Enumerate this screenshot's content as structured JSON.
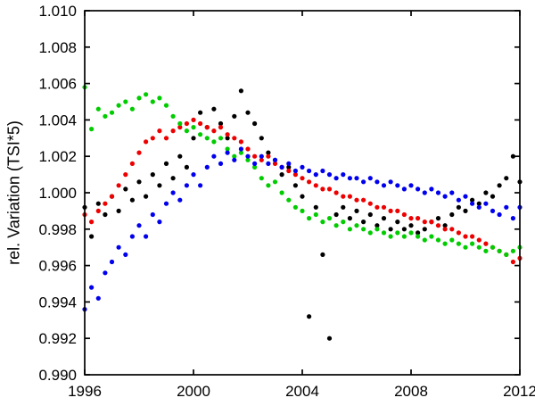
{
  "chart_data": {
    "type": "scatter",
    "title": "",
    "xlabel": "",
    "ylabel": "rel. Variation (TSI*5)",
    "xlim": [
      1996,
      2012
    ],
    "ylim": [
      0.99,
      1.01
    ],
    "grid": false,
    "legend": "none",
    "background": "#ffffff",
    "axis_color": "#000000",
    "marker": {
      "shape": "dot",
      "radius_px": 2.6
    },
    "xticks": [
      1996,
      2000,
      2004,
      2008,
      2012
    ],
    "xtick_labels": [
      "1996",
      "2000",
      "2004",
      "2008",
      "2012"
    ],
    "yticks": [
      0.99,
      0.992,
      0.994,
      0.996,
      0.998,
      1.0,
      1.002,
      1.004,
      1.006,
      1.008,
      1.01
    ],
    "ytick_labels": [
      "0.990",
      "0.992",
      "0.994",
      "0.996",
      "0.998",
      "1.000",
      "1.002",
      "1.004",
      "1.006",
      "1.008",
      "1.010"
    ],
    "x": [
      1996.0,
      1996.25,
      1996.5,
      1996.75,
      1997.0,
      1997.25,
      1997.5,
      1997.75,
      1998.0,
      1998.25,
      1998.5,
      1998.75,
      1999.0,
      1999.25,
      1999.5,
      1999.75,
      2000.0,
      2000.25,
      2000.5,
      2000.75,
      2001.0,
      2001.25,
      2001.5,
      2001.75,
      2002.0,
      2002.25,
      2002.5,
      2002.75,
      2003.0,
      2003.25,
      2003.5,
      2003.75,
      2004.0,
      2004.25,
      2004.5,
      2004.75,
      2005.0,
      2005.25,
      2005.5,
      2005.75,
      2006.0,
      2006.25,
      2006.5,
      2006.75,
      2007.0,
      2007.25,
      2007.5,
      2007.75,
      2008.0,
      2008.25,
      2008.5,
      2008.75,
      2009.0,
      2009.25,
      2009.5,
      2009.75,
      2010.0,
      2010.25,
      2010.5,
      2010.75,
      2011.0,
      2011.25,
      2011.5,
      2011.75,
      2012.0
    ],
    "series": [
      {
        "name": "black",
        "color": "#000000",
        "values": [
          0.9992,
          0.9976,
          0.9994,
          0.9988,
          0.9998,
          0.999,
          1.0002,
          0.9996,
          1.0006,
          0.9998,
          1.001,
          1.0004,
          1.0016,
          1.0008,
          1.002,
          1.0014,
          1.003,
          1.0044,
          1.0036,
          1.0046,
          1.0038,
          1.003,
          1.0042,
          1.0056,
          1.0044,
          1.0038,
          1.003,
          1.0022,
          1.0018,
          1.001,
          1.0014,
          1.0004,
          0.9998,
          0.9932,
          0.9992,
          0.9966,
          0.992,
          0.9988,
          0.9992,
          0.9986,
          0.999,
          0.9984,
          0.9988,
          0.9982,
          0.9986,
          0.998,
          0.9984,
          0.998,
          0.9982,
          0.9978,
          0.998,
          0.9984,
          0.9986,
          0.9982,
          0.9988,
          0.9992,
          0.999,
          0.9996,
          0.9994,
          1.0,
          0.9998,
          1.0004,
          1.0008,
          1.002,
          1.0006
        ]
      },
      {
        "name": "red",
        "color": "#ee0000",
        "values": [
          0.9988,
          0.9984,
          0.999,
          0.9994,
          0.9998,
          1.0004,
          1.001,
          1.0016,
          1.0022,
          1.0028,
          1.003,
          1.0034,
          1.003,
          1.0034,
          1.0036,
          1.0038,
          1.004,
          1.0038,
          1.0036,
          1.0034,
          1.0036,
          1.0032,
          1.003,
          1.0028,
          1.0024,
          1.002,
          1.0018,
          1.002,
          1.0016,
          1.0014,
          1.0012,
          1.001,
          1.0008,
          1.0006,
          1.0004,
          1.0002,
          1.0002,
          1.0,
          0.9998,
          0.9998,
          0.9996,
          0.9996,
          0.9994,
          0.9992,
          0.9992,
          0.999,
          0.999,
          0.9988,
          0.9986,
          0.9986,
          0.9984,
          0.9984,
          0.9982,
          0.998,
          0.998,
          0.9978,
          0.9976,
          0.9976,
          0.9974,
          0.9972,
          0.997,
          0.9968,
          0.9966,
          0.9962,
          0.9964
        ]
      },
      {
        "name": "green",
        "color": "#00cc00",
        "values": [
          1.0058,
          1.0035,
          1.0046,
          1.0042,
          1.0044,
          1.0048,
          1.005,
          1.0046,
          1.0052,
          1.0054,
          1.005,
          1.0052,
          1.0048,
          1.0042,
          1.0038,
          1.0034,
          1.0036,
          1.0032,
          1.003,
          1.0028,
          1.003,
          1.0024,
          1.002,
          1.0022,
          1.0018,
          1.0014,
          1.0008,
          1.0004,
          1.0006,
          1.0,
          0.9996,
          0.9992,
          0.999,
          0.9986,
          0.9988,
          0.9984,
          0.9986,
          0.9982,
          0.9984,
          0.998,
          0.9982,
          0.998,
          0.9978,
          0.998,
          0.9978,
          0.9976,
          0.9978,
          0.9976,
          0.9978,
          0.9976,
          0.9974,
          0.9976,
          0.9974,
          0.9972,
          0.9974,
          0.9972,
          0.997,
          0.9972,
          0.997,
          0.9968,
          0.997,
          0.9968,
          0.9966,
          0.9968,
          0.997
        ]
      },
      {
        "name": "blue",
        "color": "#0000ee",
        "values": [
          0.9936,
          0.9948,
          0.9942,
          0.9956,
          0.9962,
          0.997,
          0.9966,
          0.9976,
          0.9982,
          0.9976,
          0.9988,
          0.9984,
          0.9994,
          1.0,
          0.9996,
          1.0004,
          1.001,
          1.0004,
          1.0014,
          1.002,
          1.0016,
          1.0022,
          1.0018,
          1.0024,
          1.002,
          1.0016,
          1.002,
          1.0016,
          1.0018,
          1.0014,
          1.0016,
          1.0012,
          1.0014,
          1.0012,
          1.001,
          1.0012,
          1.001,
          1.0008,
          1.001,
          1.0008,
          1.0008,
          1.0006,
          1.0008,
          1.0006,
          1.0004,
          1.0006,
          1.0004,
          1.0002,
          1.0004,
          1.0002,
          1.0,
          1.0002,
          1.0,
          0.9998,
          1.0,
          0.9996,
          0.9998,
          0.9994,
          0.9992,
          0.9994,
          0.999,
          0.9988,
          0.9992,
          0.9986,
          0.9992
        ]
      }
    ]
  }
}
